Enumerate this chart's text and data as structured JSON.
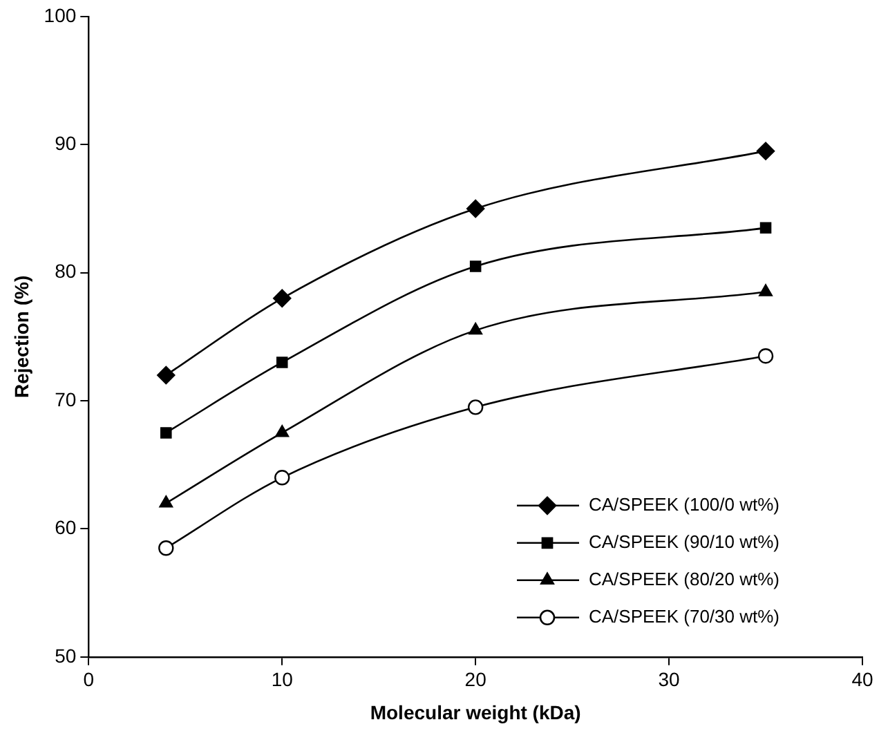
{
  "chart_data": {
    "type": "line",
    "xlabel": "Molecular weight (kDa)",
    "ylabel": "Rejection (%)",
    "x": [
      4,
      10,
      20,
      35
    ],
    "series": [
      {
        "name": "CA/SPEEK (100/0 wt%)",
        "color": "#000000",
        "marker": "diamond",
        "values": [
          72,
          78,
          85,
          89.5
        ]
      },
      {
        "name": "CA/SPEEK (90/10 wt%)",
        "color": "#000000",
        "marker": "square",
        "values": [
          67.5,
          73,
          80.5,
          83.5
        ]
      },
      {
        "name": "CA/SPEEK (80/20 wt%)",
        "color": "#000000",
        "marker": "triangle",
        "values": [
          62,
          67.5,
          75.5,
          78.5
        ]
      },
      {
        "name": "CA/SPEEK (70/30 wt%)",
        "color": "#000000",
        "marker": "circle",
        "values": [
          58.5,
          64,
          69.5,
          73.5
        ]
      }
    ],
    "xlim": [
      0,
      40
    ],
    "xticks": [
      0,
      10,
      20,
      30,
      40
    ],
    "ylim": [
      50,
      100
    ],
    "yticks": [
      50,
      60,
      70,
      80,
      90,
      100
    ],
    "grid": false,
    "legend": "bottom right"
  }
}
